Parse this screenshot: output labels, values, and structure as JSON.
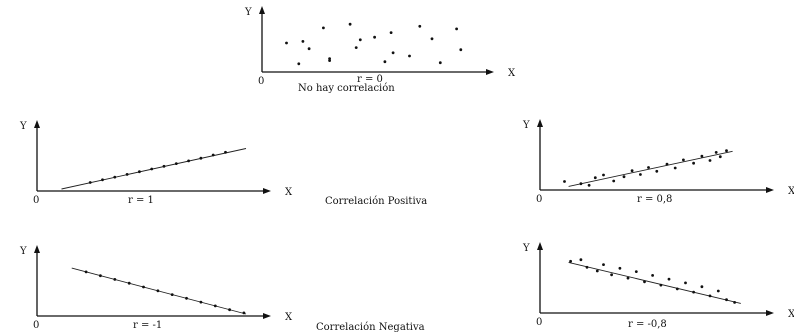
{
  "captions": {
    "positive": "Correlación Positiva",
    "negative": "Correlación Negativa"
  },
  "chart_data": [
    {
      "id": "none",
      "type": "scatter",
      "r_label": "r = 0",
      "caption": "No hay correlación",
      "xlabel": "X",
      "ylabel": "Y",
      "origin": "0",
      "xlim": [
        0,
        10
      ],
      "ylim": [
        0,
        10
      ],
      "points": [
        [
          2.1,
          4.1
        ],
        [
          4.1,
          8.8
        ],
        [
          6.1,
          7.2
        ],
        [
          7.5,
          8.4
        ],
        [
          5.3,
          6.3
        ],
        [
          1.0,
          5.2
        ],
        [
          2.8,
          8.1
        ],
        [
          3.1,
          1.8
        ],
        [
          9.3,
          7.9
        ],
        [
          4.6,
          5.8
        ],
        [
          6.2,
          3.3
        ],
        [
          8.1,
          6.0
        ],
        [
          1.8,
          5.5
        ],
        [
          4.4,
          4.3
        ],
        [
          9.5,
          3.9
        ],
        [
          1.6,
          1.2
        ],
        [
          5.8,
          1.6
        ],
        [
          8.5,
          1.4
        ],
        [
          7.0,
          2.7
        ],
        [
          3.1,
          2.2
        ]
      ],
      "fit_line": null
    },
    {
      "id": "pos1",
      "type": "scatter",
      "r_label": "r = 1",
      "caption": "",
      "xlabel": "X",
      "ylabel": "Y",
      "origin": "0",
      "xlim": [
        0,
        10
      ],
      "ylim": [
        0,
        10
      ],
      "points": [
        [
          2.4,
          1.2
        ],
        [
          3.0,
          1.7
        ],
        [
          3.6,
          2.2
        ],
        [
          4.2,
          2.7
        ],
        [
          4.8,
          3.2
        ],
        [
          5.4,
          3.7
        ],
        [
          6.0,
          4.2
        ],
        [
          6.6,
          4.7
        ],
        [
          7.2,
          5.2
        ],
        [
          7.8,
          5.7
        ],
        [
          8.4,
          6.3
        ],
        [
          9.0,
          6.8
        ]
      ],
      "fit_line": [
        [
          1.0,
          0.0
        ],
        [
          10.0,
          7.5
        ]
      ]
    },
    {
      "id": "pos08",
      "type": "scatter",
      "r_label": "r = 0,8",
      "caption": "",
      "xlabel": "X",
      "ylabel": "Y",
      "origin": "0",
      "xlim": [
        0,
        10
      ],
      "ylim": [
        0,
        10
      ],
      "points": [
        [
          1.0,
          1.2
        ],
        [
          1.8,
          0.8
        ],
        [
          2.2,
          0.5
        ],
        [
          2.5,
          1.9
        ],
        [
          2.9,
          2.4
        ],
        [
          3.4,
          1.3
        ],
        [
          3.9,
          2.1
        ],
        [
          4.3,
          3.2
        ],
        [
          4.7,
          2.5
        ],
        [
          5.1,
          3.8
        ],
        [
          5.5,
          3.1
        ],
        [
          6.0,
          4.4
        ],
        [
          6.4,
          3.7
        ],
        [
          6.8,
          5.2
        ],
        [
          7.3,
          4.6
        ],
        [
          7.7,
          5.9
        ],
        [
          8.1,
          5.1
        ],
        [
          8.4,
          6.6
        ],
        [
          8.6,
          5.8
        ],
        [
          8.9,
          6.9
        ]
      ],
      "fit_line": [
        [
          1.2,
          0.3
        ],
        [
          9.2,
          6.8
        ]
      ]
    },
    {
      "id": "neg1",
      "type": "scatter",
      "r_label": "r = -1",
      "caption": "",
      "xlabel": "X",
      "ylabel": "Y",
      "origin": "0",
      "xlim": [
        0,
        10
      ],
      "ylim": [
        0,
        10
      ],
      "points": [
        [
          2.2,
          7.8
        ],
        [
          2.9,
          7.1
        ],
        [
          3.6,
          6.4
        ],
        [
          4.3,
          5.7
        ],
        [
          5.0,
          5.0
        ],
        [
          5.7,
          4.3
        ],
        [
          6.4,
          3.6
        ],
        [
          7.1,
          2.9
        ],
        [
          7.8,
          2.2
        ],
        [
          8.5,
          1.5
        ],
        [
          9.2,
          0.8
        ],
        [
          9.9,
          0.2
        ]
      ],
      "fit_line": [
        [
          1.5,
          8.5
        ],
        [
          10.0,
          0.0
        ]
      ]
    },
    {
      "id": "neg08",
      "type": "scatter",
      "r_label": "r = -0,8",
      "caption": "",
      "xlabel": "X",
      "ylabel": "Y",
      "origin": "0",
      "xlim": [
        0,
        10
      ],
      "ylim": [
        0,
        10
      ],
      "points": [
        [
          1.3,
          9.2
        ],
        [
          1.8,
          9.5
        ],
        [
          2.1,
          8.1
        ],
        [
          2.6,
          7.4
        ],
        [
          2.9,
          8.6
        ],
        [
          3.3,
          6.7
        ],
        [
          3.7,
          7.9
        ],
        [
          4.1,
          6.1
        ],
        [
          4.5,
          7.3
        ],
        [
          4.9,
          5.4
        ],
        [
          5.3,
          6.6
        ],
        [
          5.7,
          4.8
        ],
        [
          6.1,
          5.9
        ],
        [
          6.5,
          4.1
        ],
        [
          6.9,
          5.2
        ],
        [
          7.3,
          3.5
        ],
        [
          7.7,
          4.5
        ],
        [
          8.1,
          2.8
        ],
        [
          8.5,
          3.7
        ],
        [
          8.9,
          2.1
        ],
        [
          9.3,
          1.6
        ]
      ],
      "fit_line": [
        [
          1.2,
          9.0
        ],
        [
          9.6,
          1.4
        ]
      ]
    }
  ]
}
